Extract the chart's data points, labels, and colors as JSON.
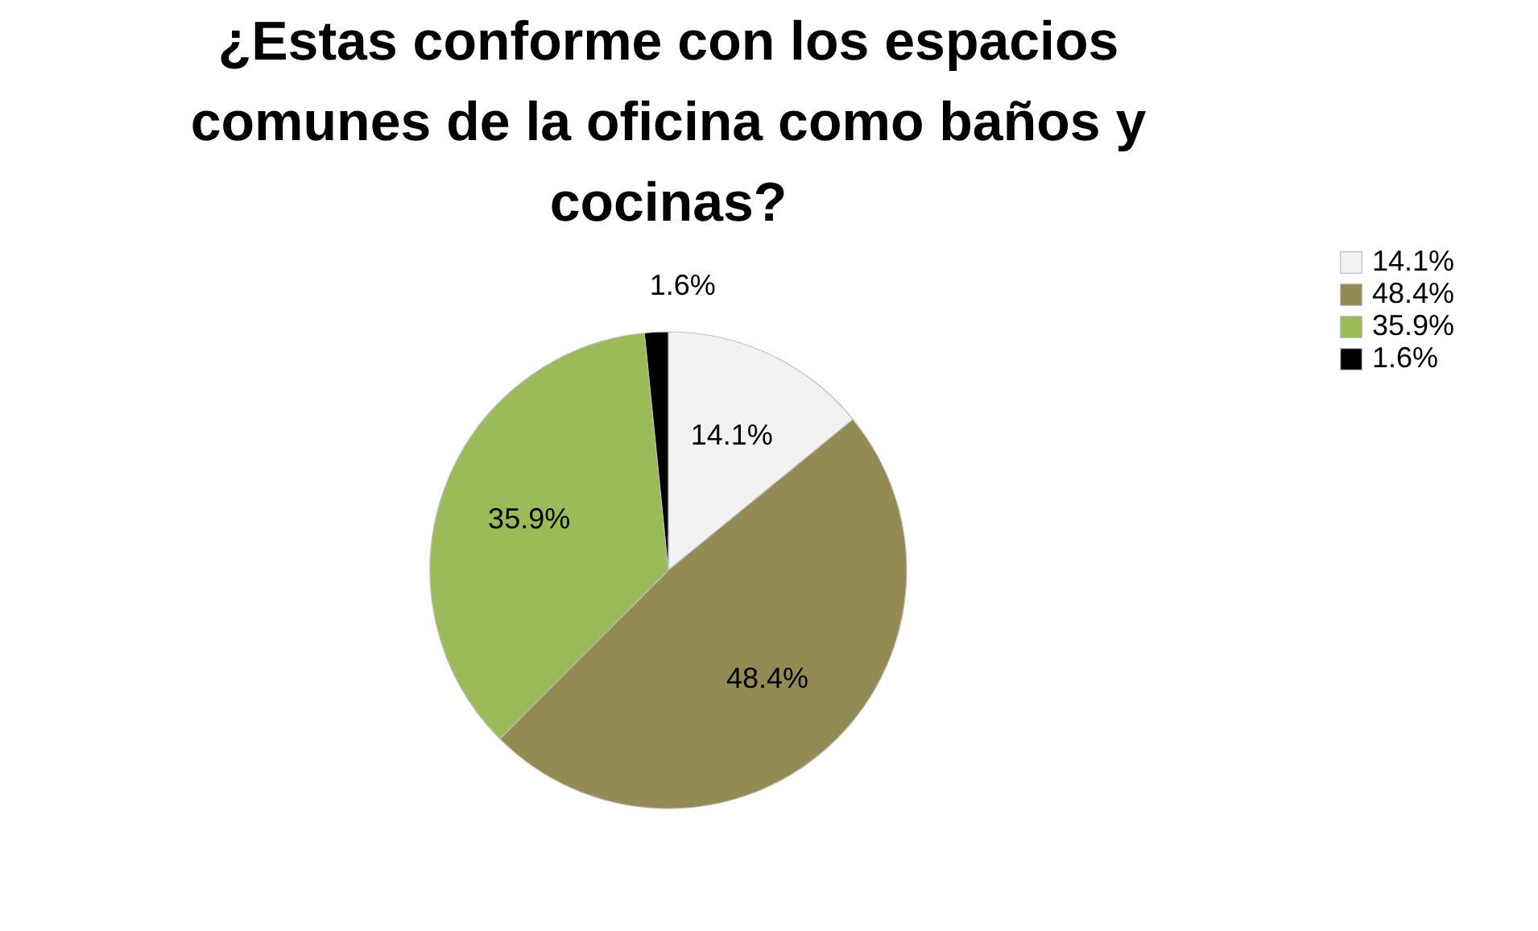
{
  "chart_data": {
    "type": "pie",
    "title": "¿Estas conforme con los espacios comunes de la oficina como baños y cocinas?",
    "categories": [
      "14.1%",
      "48.4%",
      "35.9%",
      "1.6%"
    ],
    "values": [
      14.1,
      48.4,
      35.9,
      1.6
    ],
    "colors": [
      "#f2f2f2",
      "#948a54",
      "#9bbb59",
      "#000000"
    ],
    "value_labels": [
      "14.1%",
      "48.4%",
      "35.9%",
      "1.6%"
    ],
    "legend": "right"
  }
}
